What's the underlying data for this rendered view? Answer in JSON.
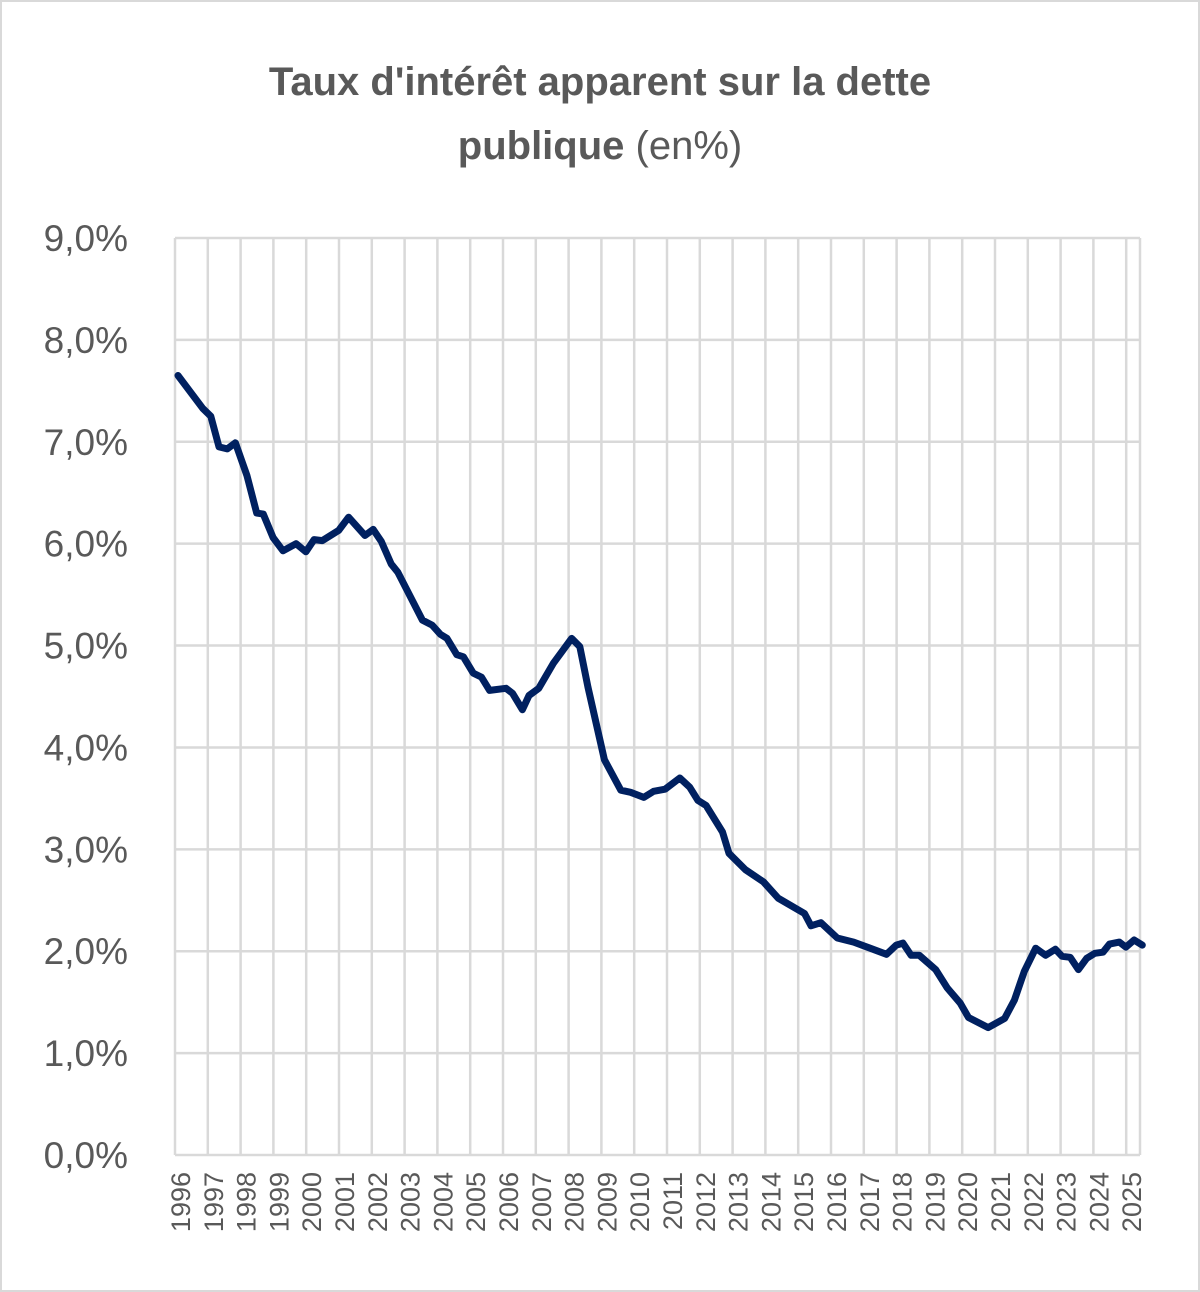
{
  "chart_data": {
    "type": "line",
    "title": "Taux d'intérêt apparent sur la dette publique",
    "title_line1": "Taux d'intérêt apparent sur la dette",
    "title_line2_bold": "publique",
    "title_suffix": "(en%)",
    "xlabel": "",
    "ylabel": "",
    "ylim": [
      0,
      9
    ],
    "xlim": [
      1996,
      2025.5
    ],
    "grid": true,
    "y_ticks": [
      "0,0%",
      "1,0%",
      "2,0%",
      "3,0%",
      "4,0%",
      "5,0%",
      "6,0%",
      "7,0%",
      "8,0%",
      "9,0%"
    ],
    "x_ticks": [
      "1996",
      "1997",
      "1998",
      "1999",
      "2000",
      "2001",
      "2002",
      "2003",
      "2004",
      "2005",
      "2006",
      "2007",
      "2008",
      "2009",
      "2010",
      "2011",
      "2012",
      "2013",
      "2014",
      "2015",
      "2016",
      "2017",
      "2018",
      "2019",
      "2020",
      "2021",
      "2022",
      "2023",
      "2024",
      "2025"
    ],
    "series": [
      {
        "name": "Taux d'intérêt apparent",
        "color": "#002060",
        "x": [
          1996.0,
          1996.75,
          1997.0,
          1997.25,
          1997.5,
          1997.75,
          1998.1,
          1998.4,
          1998.6,
          1998.9,
          1999.2,
          1999.6,
          1999.9,
          2000.15,
          2000.4,
          2000.9,
          2001.2,
          2001.7,
          2001.95,
          2002.2,
          2002.5,
          2002.7,
          2003.45,
          2003.75,
          2004.0,
          2004.2,
          2004.5,
          2004.7,
          2005.0,
          2005.25,
          2005.5,
          2006.0,
          2006.2,
          2006.5,
          2006.7,
          2007.0,
          2007.45,
          2008.0,
          2008.25,
          2008.5,
          2009.0,
          2009.5,
          2009.8,
          2010.2,
          2010.5,
          2010.85,
          2011.3,
          2011.6,
          2011.85,
          2012.1,
          2012.6,
          2012.8,
          2013.3,
          2013.85,
          2014.3,
          2015.1,
          2015.3,
          2015.6,
          2016.1,
          2016.6,
          2017.1,
          2017.6,
          2017.9,
          2018.1,
          2018.35,
          2018.6,
          2019.1,
          2019.45,
          2019.85,
          2020.1,
          2020.7,
          2021.2,
          2021.5,
          2021.8,
          2022.15,
          2022.45,
          2022.75,
          2022.95,
          2023.2,
          2023.45,
          2023.7,
          2023.95,
          2024.2,
          2024.4,
          2024.7,
          2024.9,
          2025.15,
          2025.4
        ],
        "values": [
          7.65,
          7.33,
          7.25,
          6.95,
          6.93,
          6.99,
          6.67,
          6.3,
          6.29,
          6.06,
          5.93,
          6.0,
          5.92,
          6.04,
          6.03,
          6.13,
          6.26,
          6.08,
          6.14,
          6.02,
          5.8,
          5.72,
          5.25,
          5.2,
          5.11,
          5.07,
          4.91,
          4.89,
          4.73,
          4.69,
          4.56,
          4.58,
          4.53,
          4.37,
          4.51,
          4.58,
          4.83,
          5.07,
          4.99,
          4.59,
          3.88,
          3.58,
          3.56,
          3.51,
          3.57,
          3.59,
          3.7,
          3.61,
          3.48,
          3.43,
          3.17,
          2.96,
          2.8,
          2.68,
          2.52,
          2.37,
          2.25,
          2.28,
          2.13,
          2.09,
          2.03,
          1.97,
          2.06,
          2.08,
          1.96,
          1.96,
          1.82,
          1.64,
          1.49,
          1.35,
          1.25,
          1.34,
          1.52,
          1.8,
          2.03,
          1.96,
          2.02,
          1.95,
          1.94,
          1.82,
          1.93,
          1.98,
          1.99,
          2.07,
          2.09,
          2.04,
          2.11,
          2.06
        ]
      }
    ]
  }
}
